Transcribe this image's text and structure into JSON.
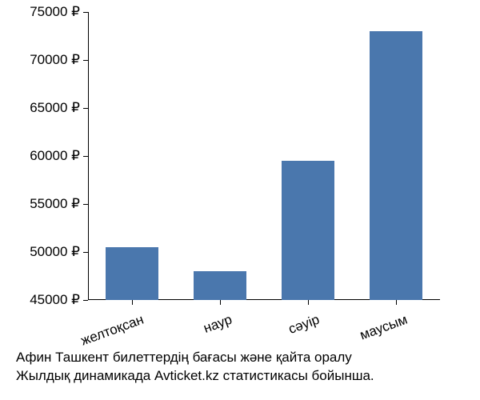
{
  "chart": {
    "type": "bar",
    "categories": [
      "желтоқсан",
      "наур",
      "сәуір",
      "маусым"
    ],
    "values": [
      50500,
      48000,
      59500,
      73000
    ],
    "bar_color": "#4a77ad",
    "background_color": "#ffffff",
    "axis_color": "#000000",
    "text_color": "#000000",
    "ylim_min": 45000,
    "ylim_max": 75000,
    "ytick_step": 5000,
    "y_unit_suffix": " ₽",
    "bar_width": 0.6,
    "label_fontsize": 17,
    "xlabel_rotation_deg": -20
  },
  "caption": {
    "line1": "Афин Ташкент билеттердің бағасы және қайта оралу",
    "line2": "Жылдық динамикада Avticket.kz статистикасы бойынша."
  }
}
